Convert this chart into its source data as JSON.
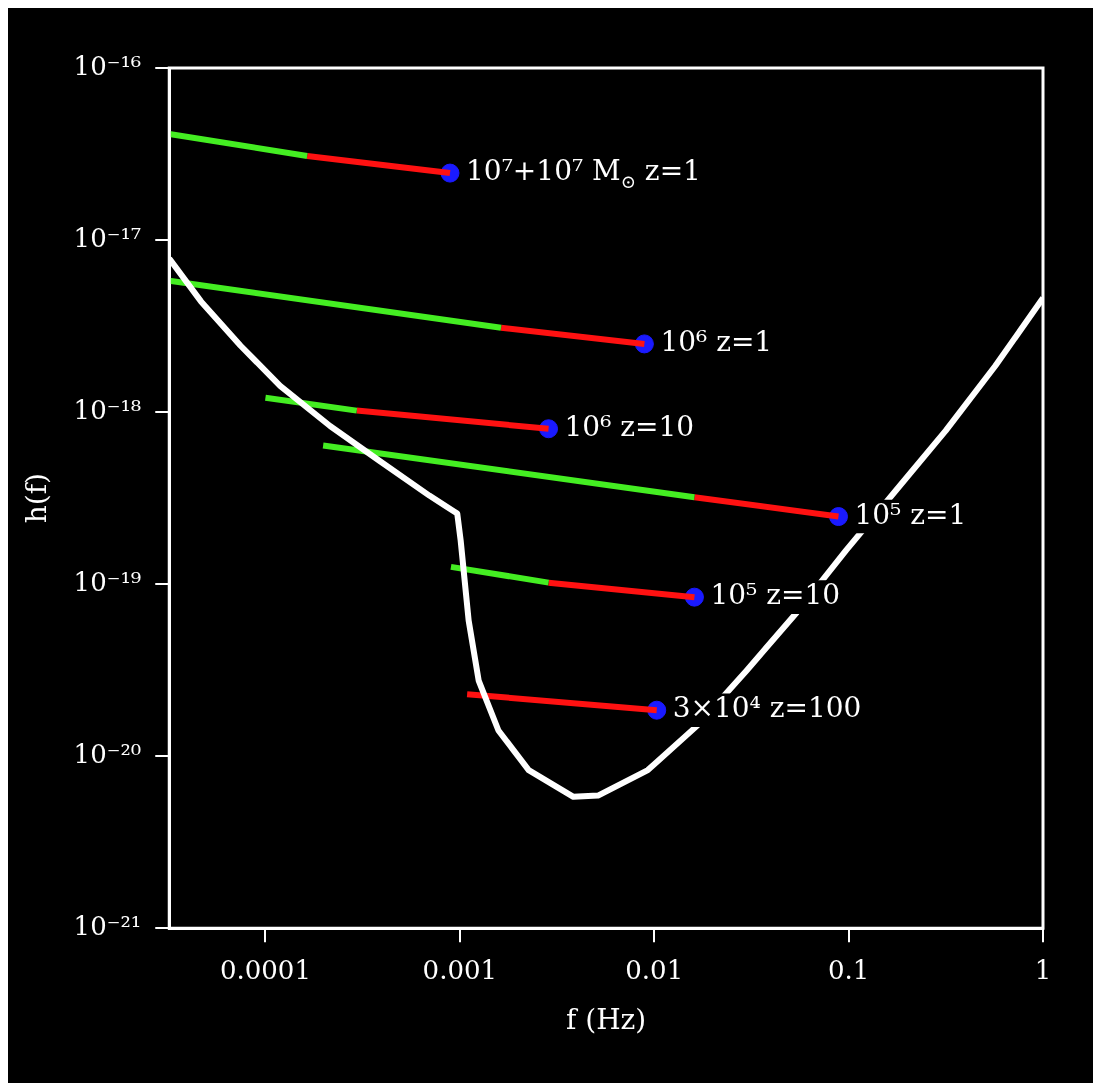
{
  "chart_data": {
    "type": "line",
    "xlabel": "f (Hz)",
    "ylabel": "h(f)",
    "log": "xy",
    "grid": false,
    "legend": false,
    "xlim": [
      3.2e-05,
      1
    ],
    "ylim": [
      1e-21,
      1e-16
    ],
    "xticks": [
      0.0001,
      0.001,
      0.01,
      0.1,
      1
    ],
    "yticks": [
      {
        "value": 1e-21,
        "label": "10⁻²¹"
      },
      {
        "value": 1e-20,
        "label": "10⁻²⁰"
      },
      {
        "value": 1e-19,
        "label": "10⁻¹⁹"
      },
      {
        "value": 1e-18,
        "label": "10⁻¹⁸"
      },
      {
        "value": 1e-17,
        "label": "10⁻¹⁷"
      },
      {
        "value": 1e-16,
        "label": "10⁻¹⁶"
      }
    ],
    "series": [
      {
        "color": "#ffffff",
        "x": [
          3.2e-05,
          4.66e-05,
          7.45e-05,
          0.000119,
          0.000215,
          0.000387,
          0.000697,
          0.00097,
          0.00101,
          0.00111,
          0.00125,
          0.00158,
          0.00226,
          0.00384,
          0.00514,
          0.00927,
          0.0167,
          0.0299,
          0.0541,
          0.097,
          0.175,
          0.316,
          0.569,
          1
        ],
        "values": [
          7.8e-18,
          4.4e-18,
          2.43e-18,
          1.42e-18,
          8.3e-19,
          5.2e-19,
          3.27e-19,
          2.57e-19,
          1.79e-19,
          6.15e-20,
          2.75e-20,
          1.41e-20,
          8.3e-21,
          5.8e-21,
          5.9e-21,
          8.3e-21,
          1.51e-20,
          3.15e-20,
          6.84e-20,
          1.57e-19,
          3.5e-19,
          7.8e-19,
          1.86e-18,
          4.6e-18
        ]
      },
      {
        "color": "#44ee22",
        "x": [
          3.2e-05,
          0.000164
        ],
        "values": [
          4.14e-17,
          3.08e-17
        ]
      },
      {
        "color": "#ff1111",
        "x": [
          0.000164,
          0.00089
        ],
        "values": [
          3.08e-17,
          2.45e-17
        ]
      },
      {
        "type": "line",
        "color": "#44ee22",
        "x": [
          3.2e-05,
          0.00163
        ],
        "values": [
          5.8e-18,
          3.09e-18
        ]
      },
      {
        "type": "line",
        "color": "#ff1111",
        "x": [
          0.00163,
          0.0089
        ],
        "values": [
          3.09e-18,
          2.49e-18
        ]
      },
      {
        "type": "line",
        "color": "#44ee22",
        "x": [
          0.0001,
          0.000295
        ],
        "values": [
          1.21e-18,
          1.02e-18
        ]
      },
      {
        "type": "line",
        "color": "#ff1111",
        "x": [
          0.000295,
          0.00286
        ],
        "values": [
          1.02e-18,
          8e-19
        ]
      },
      {
        "type": "line",
        "color": "#44ee22",
        "x": [
          0.000198,
          0.0161
        ],
        "values": [
          6.4e-19,
          3.2e-19
        ]
      },
      {
        "type": "line",
        "color": "#ff1111",
        "x": [
          0.0161,
          0.0887
        ],
        "values": [
          3.2e-19,
          2.47e-19
        ]
      },
      {
        "type": "line",
        "color": "#44ee22",
        "x": [
          0.0009,
          0.00286
        ],
        "values": [
          1.26e-19,
          1.02e-19
        ]
      },
      {
        "type": "line",
        "color": "#ff1111",
        "x": [
          0.00286,
          0.0161
        ],
        "values": [
          1.02e-19,
          8.4e-20
        ]
      },
      {
        "type": "line",
        "color": "#ff1111",
        "x": [
          0.00109,
          0.0103
        ],
        "values": [
          2.29e-20,
          1.85e-20
        ]
      },
      {
        "type": "scatter",
        "color": "#1a1aff",
        "marker": "circle",
        "x": [
          0.00089,
          0.0089,
          0.00286,
          0.0887,
          0.0161,
          0.0103
        ],
        "values": [
          2.45e-17,
          2.49e-18,
          8e-19,
          2.47e-19,
          8.4e-20,
          1.85e-20
        ]
      }
    ],
    "annotations": [
      {
        "text": "10⁷+10⁷ M$_{⊙}$ z=1",
        "x": 0.00089,
        "y": 2.45e-17
      },
      {
        "text": "10⁶ z=1",
        "x": 0.0089,
        "y": 2.49e-18
      },
      {
        "text": "10⁶ z=10",
        "x": 0.00286,
        "y": 8e-19
      },
      {
        "text": "10⁵ z=1",
        "x": 0.0887,
        "y": 2.47e-19
      },
      {
        "text": "10⁵ z=10",
        "x": 0.0161,
        "y": 8.4e-20
      },
      {
        "text": "3×10⁴ z=100",
        "x": 0.0103,
        "y": 1.85e-20
      }
    ]
  }
}
